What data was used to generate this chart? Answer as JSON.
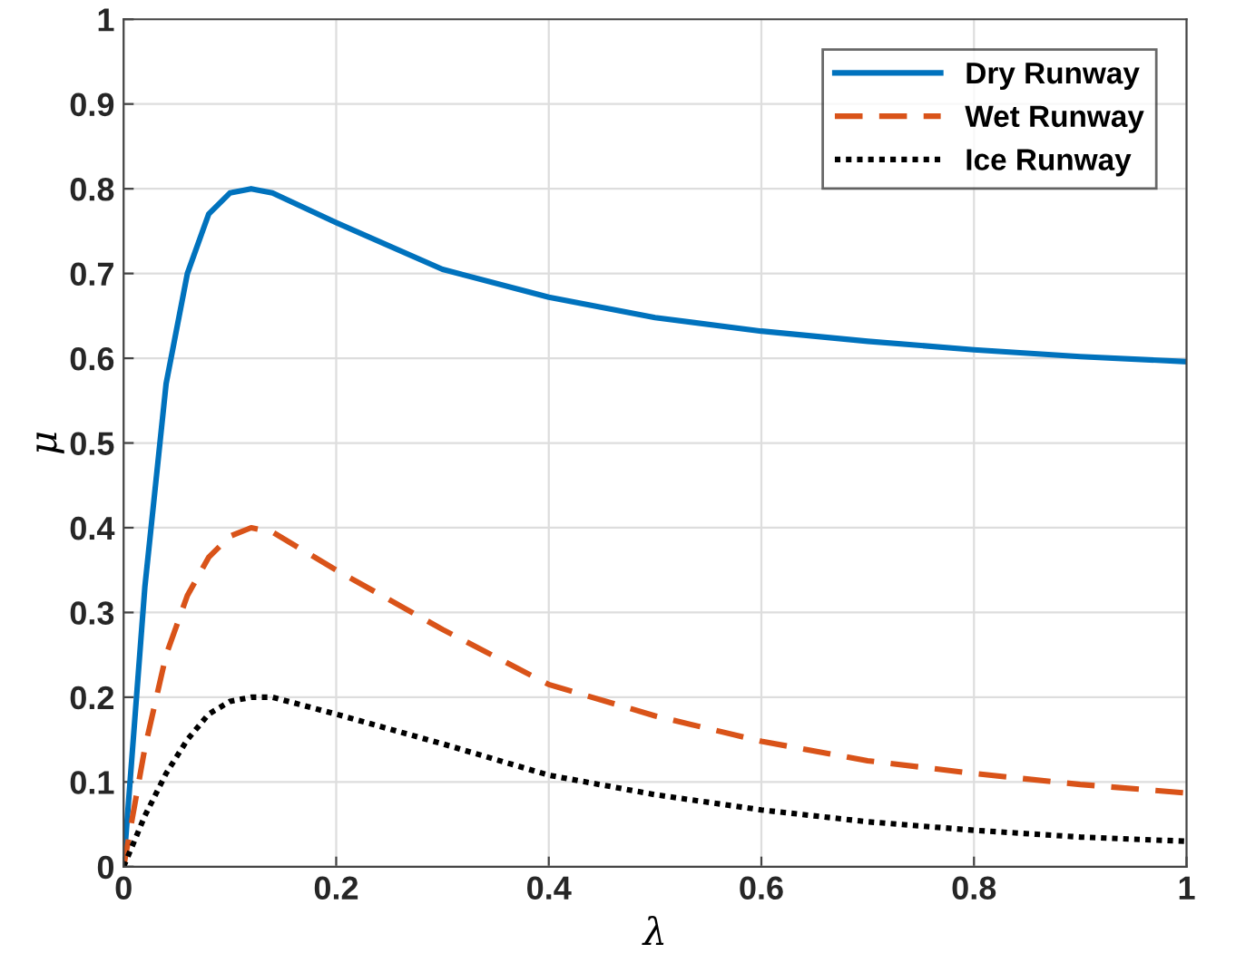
{
  "chart_data": {
    "type": "line",
    "xlabel": "λ",
    "ylabel": "μ",
    "xlim": [
      0,
      1
    ],
    "ylim": [
      0,
      1
    ],
    "xticks": [
      0,
      0.2,
      0.4,
      0.6,
      0.8,
      1
    ],
    "yticks": [
      0,
      0.1,
      0.2,
      0.3,
      0.4,
      0.5,
      0.6,
      0.7,
      0.8,
      0.9,
      1
    ],
    "grid": true,
    "legend": "top right",
    "marker": "none",
    "series": [
      {
        "name": "Dry Runway",
        "color": "#0072bd",
        "line_style": "solid",
        "x": [
          0,
          0.02,
          0.04,
          0.06,
          0.08,
          0.1,
          0.12,
          0.14,
          0.2,
          0.3,
          0.4,
          0.5,
          0.6,
          0.7,
          0.8,
          0.9,
          1.0
        ],
        "values": [
          0,
          0.33,
          0.57,
          0.7,
          0.77,
          0.795,
          0.8,
          0.795,
          0.76,
          0.705,
          0.672,
          0.648,
          0.632,
          0.62,
          0.61,
          0.602,
          0.596
        ]
      },
      {
        "name": "Wet Runway",
        "color": "#d95319",
        "line_style": "dashed",
        "x": [
          0,
          0.02,
          0.04,
          0.06,
          0.08,
          0.1,
          0.12,
          0.14,
          0.2,
          0.3,
          0.4,
          0.5,
          0.6,
          0.7,
          0.8,
          0.9,
          1.0
        ],
        "values": [
          0,
          0.14,
          0.25,
          0.32,
          0.365,
          0.39,
          0.4,
          0.395,
          0.35,
          0.28,
          0.215,
          0.178,
          0.148,
          0.125,
          0.11,
          0.097,
          0.087
        ]
      },
      {
        "name": "Ice Runway",
        "color": "#000000",
        "line_style": "dotted",
        "x": [
          0,
          0.02,
          0.04,
          0.06,
          0.08,
          0.1,
          0.12,
          0.14,
          0.2,
          0.3,
          0.4,
          0.5,
          0.6,
          0.7,
          0.8,
          0.9,
          1.0
        ],
        "values": [
          0,
          0.06,
          0.11,
          0.15,
          0.18,
          0.195,
          0.2,
          0.2,
          0.18,
          0.145,
          0.108,
          0.085,
          0.067,
          0.053,
          0.043,
          0.035,
          0.03
        ]
      }
    ]
  }
}
